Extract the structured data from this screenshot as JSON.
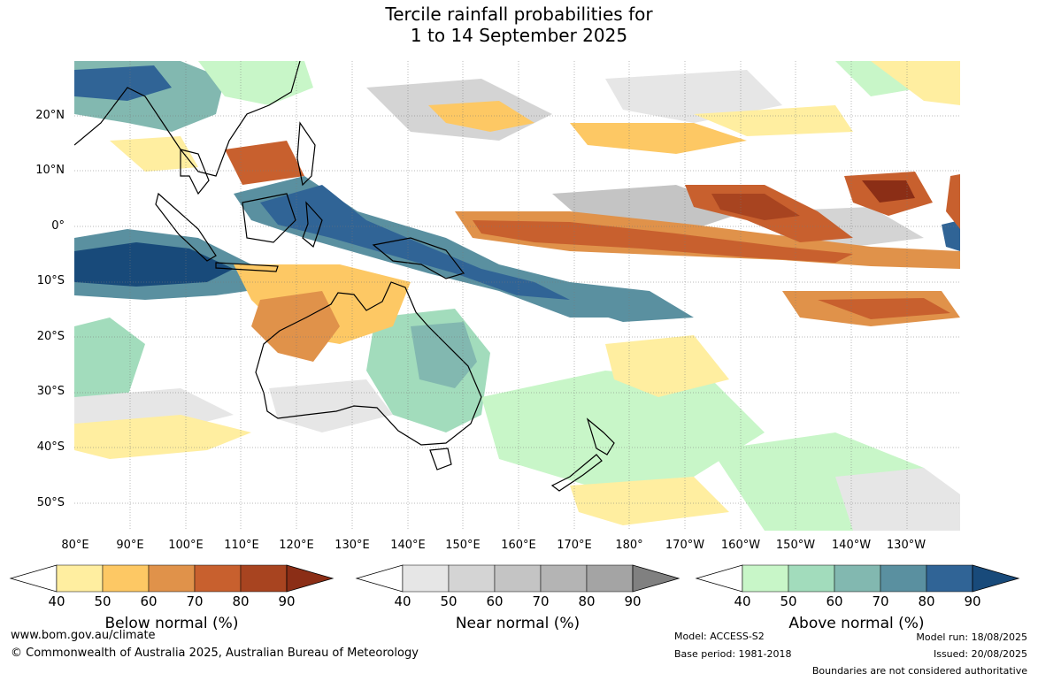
{
  "title_line1": "Tercile rainfall probabilities for",
  "title_line2": "1 to 14 September 2025",
  "lat_labels": [
    "20°N",
    "10°N",
    "0°",
    "10°S",
    "20°S",
    "30°S",
    "40°S",
    "50°S"
  ],
  "lon_labels": [
    "80°E",
    "90°E",
    "100°E",
    "110°E",
    "120°E",
    "130°E",
    "140°E",
    "150°E",
    "160°E",
    "170°E",
    "180°",
    "170°W",
    "160°W",
    "150°W",
    "140°W",
    "130°W"
  ],
  "colorbars": [
    {
      "label": "Below normal (%)",
      "ticks": [
        "40",
        "50",
        "60",
        "70",
        "80",
        "90"
      ],
      "colors": [
        "#ffeea0",
        "#fdc864",
        "#e0924a",
        "#c8602e",
        "#a84420",
        "#8b2e16"
      ]
    },
    {
      "label": "Near normal (%)",
      "ticks": [
        "40",
        "50",
        "60",
        "70",
        "80",
        "90"
      ],
      "colors": [
        "#e6e6e6",
        "#d4d4d4",
        "#c4c4c4",
        "#b4b4b4",
        "#a4a4a4",
        "#808080"
      ]
    },
    {
      "label": "Above normal (%)",
      "ticks": [
        "40",
        "50",
        "60",
        "70",
        "80",
        "90"
      ],
      "colors": [
        "#c8f6c8",
        "#a2dcbc",
        "#82b8b0",
        "#5a90a0",
        "#306496",
        "#184a7a"
      ]
    }
  ],
  "footer": {
    "url": "www.bom.gov.au/climate",
    "copyright": "© Commonwealth of Australia 2025, Australian Bureau of Meteorology",
    "model": "Model: ACCESS-S2",
    "base_period": "Base period: 1981-2018",
    "model_run": "Model run: 18/08/2025",
    "issued": "Issued: 20/08/2025",
    "boundaries": "Boundaries are not considered authoritative"
  }
}
